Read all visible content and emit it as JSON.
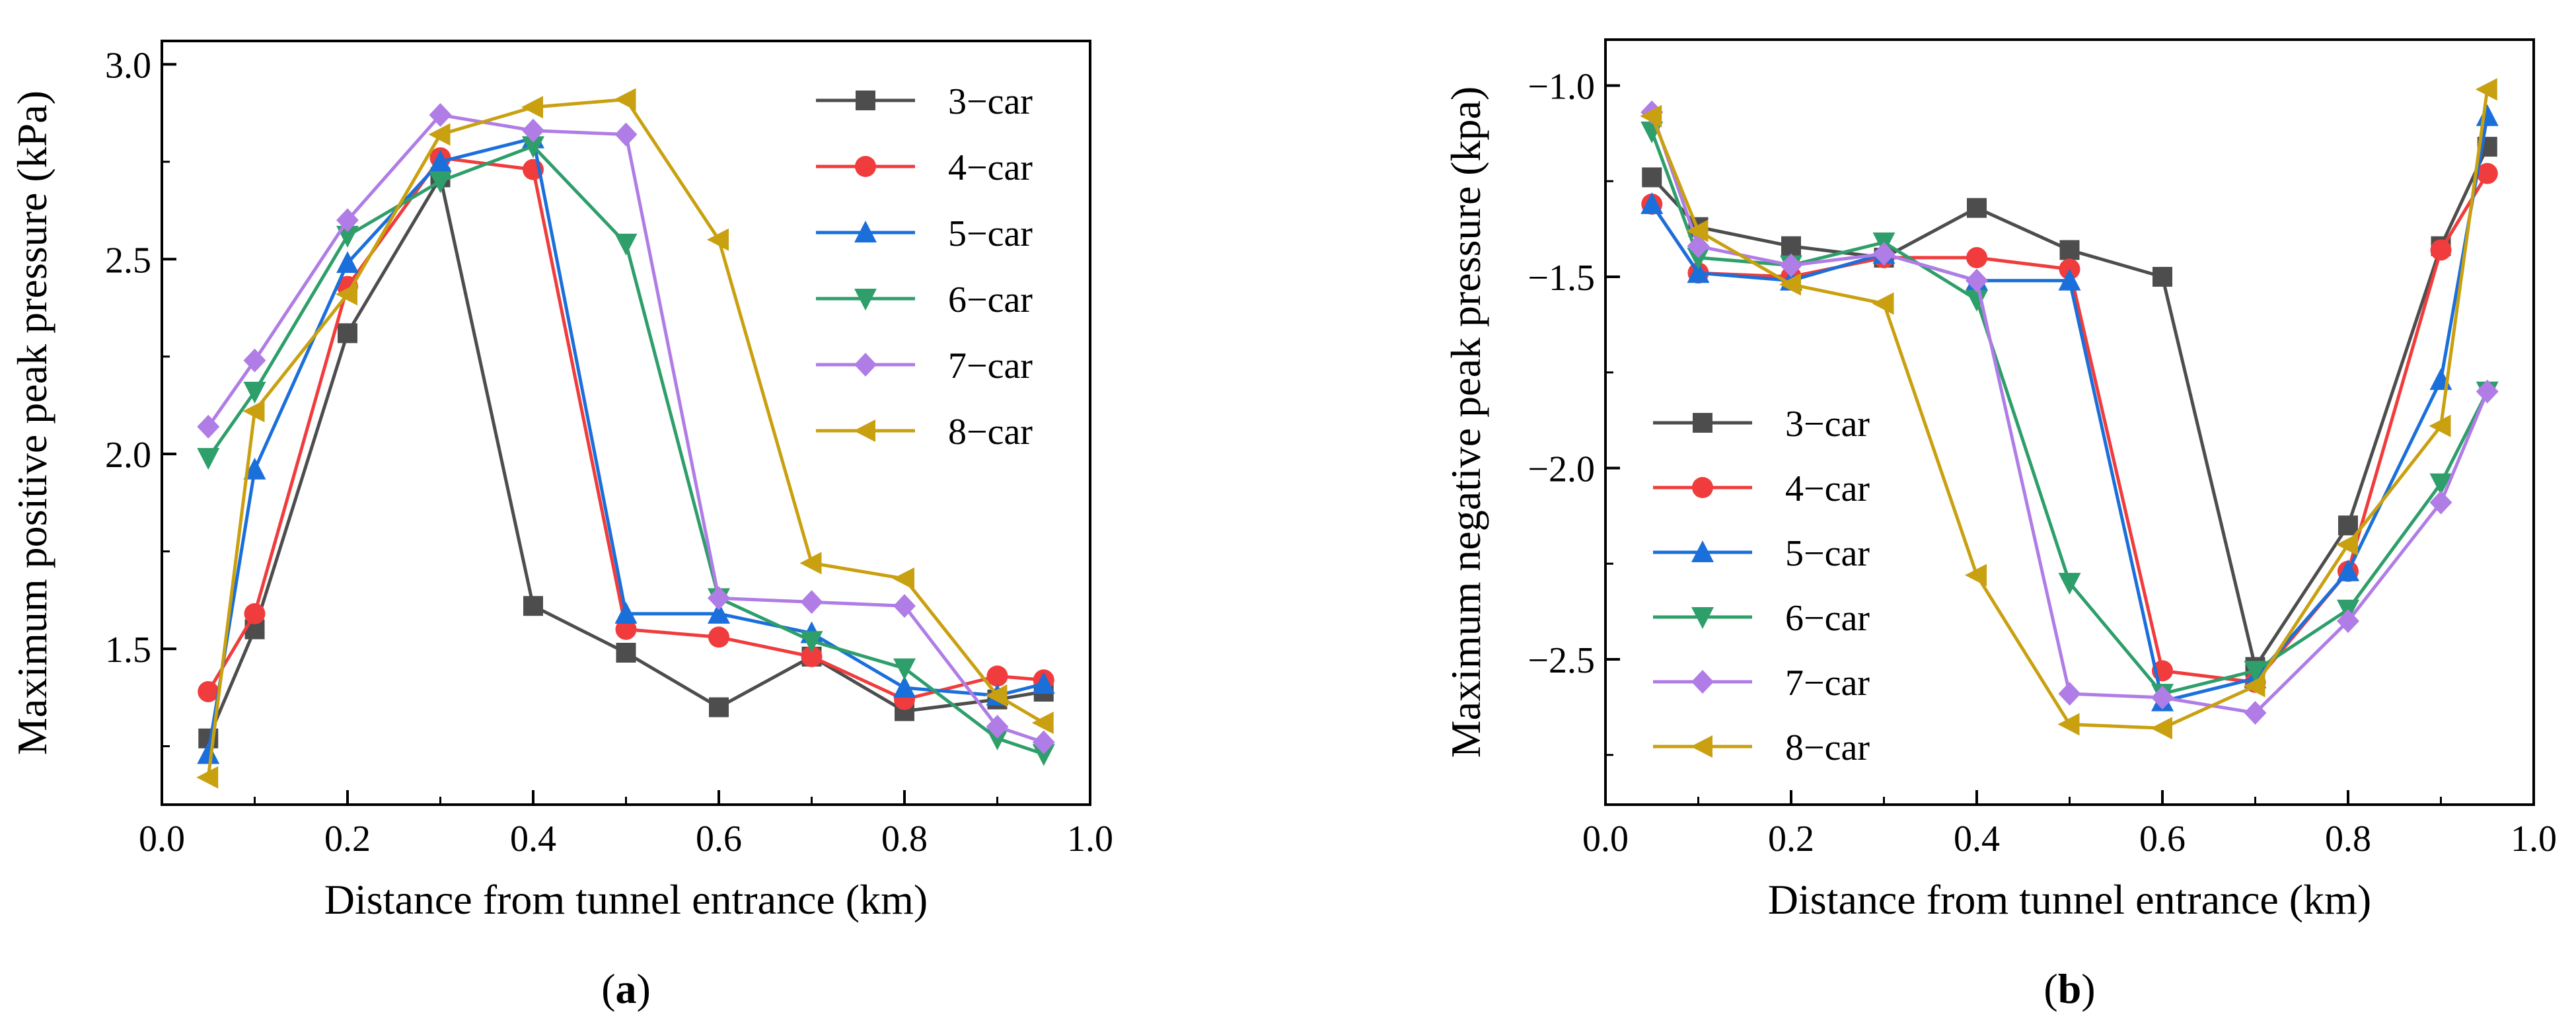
{
  "chart_data": [
    {
      "type": "line",
      "panel_label": "a",
      "panel_caption_open": "(",
      "panel_caption_close": ")",
      "title": "",
      "xlabel": "Distance from tunnel entrance (km)",
      "ylabel": "Maximum positive peak pressure (kPa)",
      "xlim": [
        0.0,
        1.0
      ],
      "ylim": [
        1.1,
        3.06
      ],
      "xticks": [
        0.0,
        0.2,
        0.4,
        0.6,
        0.8,
        1.0
      ],
      "xtick_labels": [
        "0.0",
        "0.2",
        "0.4",
        "0.6",
        "0.8",
        "1.0"
      ],
      "yticks": [
        1.5,
        2.0,
        2.5,
        3.0
      ],
      "ytick_labels": [
        "1.5",
        "2.0",
        "2.5",
        "3.0"
      ],
      "grid": false,
      "legend_position": "top-right",
      "x": [
        0.05,
        0.1,
        0.2,
        0.3,
        0.4,
        0.5,
        0.6,
        0.7,
        0.8,
        0.9,
        0.95
      ],
      "series": [
        {
          "name": "3−car",
          "color": "#4d4d4d",
          "marker": "square",
          "values": [
            1.27,
            1.55,
            2.31,
            2.71,
            1.61,
            1.49,
            1.35,
            1.48,
            1.34,
            1.37,
            1.39
          ]
        },
        {
          "name": "4−car",
          "color": "#f03c3c",
          "marker": "circle",
          "values": [
            1.39,
            1.59,
            2.43,
            2.76,
            2.73,
            1.55,
            1.53,
            1.48,
            1.37,
            1.43,
            1.42
          ]
        },
        {
          "name": "5−car",
          "color": "#1a6fdb",
          "marker": "triangle-up",
          "values": [
            1.23,
            1.96,
            2.49,
            2.75,
            2.81,
            1.59,
            1.59,
            1.54,
            1.4,
            1.38,
            1.41
          ]
        },
        {
          "name": "6−car",
          "color": "#2e9e6a",
          "marker": "triangle-down",
          "values": [
            1.99,
            2.16,
            2.56,
            2.7,
            2.79,
            2.54,
            1.63,
            1.52,
            1.45,
            1.27,
            1.23
          ]
        },
        {
          "name": "7−car",
          "color": "#b07ce6",
          "marker": "diamond",
          "values": [
            2.07,
            2.24,
            2.6,
            2.87,
            2.83,
            2.82,
            1.63,
            1.62,
            1.61,
            1.3,
            1.26
          ]
        },
        {
          "name": "8−car",
          "color": "#c9a010",
          "marker": "triangle-left",
          "values": [
            1.17,
            2.11,
            2.41,
            2.82,
            2.89,
            2.91,
            2.55,
            1.72,
            1.68,
            1.38,
            1.31
          ]
        }
      ]
    },
    {
      "type": "line",
      "panel_label": "b",
      "panel_caption_open": "(",
      "panel_caption_close": ")",
      "title": "",
      "xlabel": "Distance from tunnel entrance (km)",
      "ylabel": "Maximum negative peak pressure (kpa)",
      "xlim": [
        0.0,
        1.0
      ],
      "ylim": [
        -2.88,
        -0.88
      ],
      "xticks": [
        0.0,
        0.2,
        0.4,
        0.6,
        0.8,
        1.0
      ],
      "xtick_labels": [
        "0.0",
        "0.2",
        "0.4",
        "0.6",
        "0.8",
        "1.0"
      ],
      "yticks": [
        -2.5,
        -2.0,
        -1.5,
        -1.0
      ],
      "ytick_labels": [
        "−2.5",
        "−2.0",
        "−1.5",
        "−1.0"
      ],
      "grid": false,
      "legend_position": "center-left",
      "x": [
        0.05,
        0.1,
        0.2,
        0.3,
        0.4,
        0.5,
        0.6,
        0.7,
        0.8,
        0.9,
        0.95
      ],
      "series": [
        {
          "name": "3−car",
          "color": "#4d4d4d",
          "marker": "square",
          "values": [
            -1.24,
            -1.37,
            -1.42,
            -1.45,
            -1.32,
            -1.43,
            -1.5,
            -2.52,
            -2.15,
            -1.42,
            -1.16
          ]
        },
        {
          "name": "4−car",
          "color": "#f03c3c",
          "marker": "circle",
          "values": [
            -1.31,
            -1.49,
            -1.5,
            -1.45,
            -1.45,
            -1.48,
            -2.53,
            -2.56,
            -2.27,
            -1.43,
            -1.23
          ]
        },
        {
          "name": "5−car",
          "color": "#1a6fdb",
          "marker": "triangle-up",
          "values": [
            -1.31,
            -1.49,
            -1.51,
            -1.44,
            -1.51,
            -1.51,
            -2.61,
            -2.55,
            -2.27,
            -1.77,
            -1.08
          ]
        },
        {
          "name": "6−car",
          "color": "#2e9e6a",
          "marker": "triangle-down",
          "values": [
            -1.12,
            -1.45,
            -1.47,
            -1.41,
            -1.56,
            -2.3,
            -2.59,
            -2.53,
            -2.37,
            -2.04,
            -1.8
          ]
        },
        {
          "name": "7−car",
          "color": "#b07ce6",
          "marker": "diamond",
          "values": [
            -1.07,
            -1.42,
            -1.47,
            -1.44,
            -1.51,
            -2.59,
            -2.6,
            -2.64,
            -2.4,
            -2.09,
            -1.8
          ]
        },
        {
          "name": "8−car",
          "color": "#c9a010",
          "marker": "triangle-left",
          "values": [
            -1.08,
            -1.38,
            -1.52,
            -1.57,
            -2.28,
            -2.67,
            -2.68,
            -2.57,
            -2.2,
            -1.89,
            -1.01
          ]
        }
      ]
    }
  ]
}
